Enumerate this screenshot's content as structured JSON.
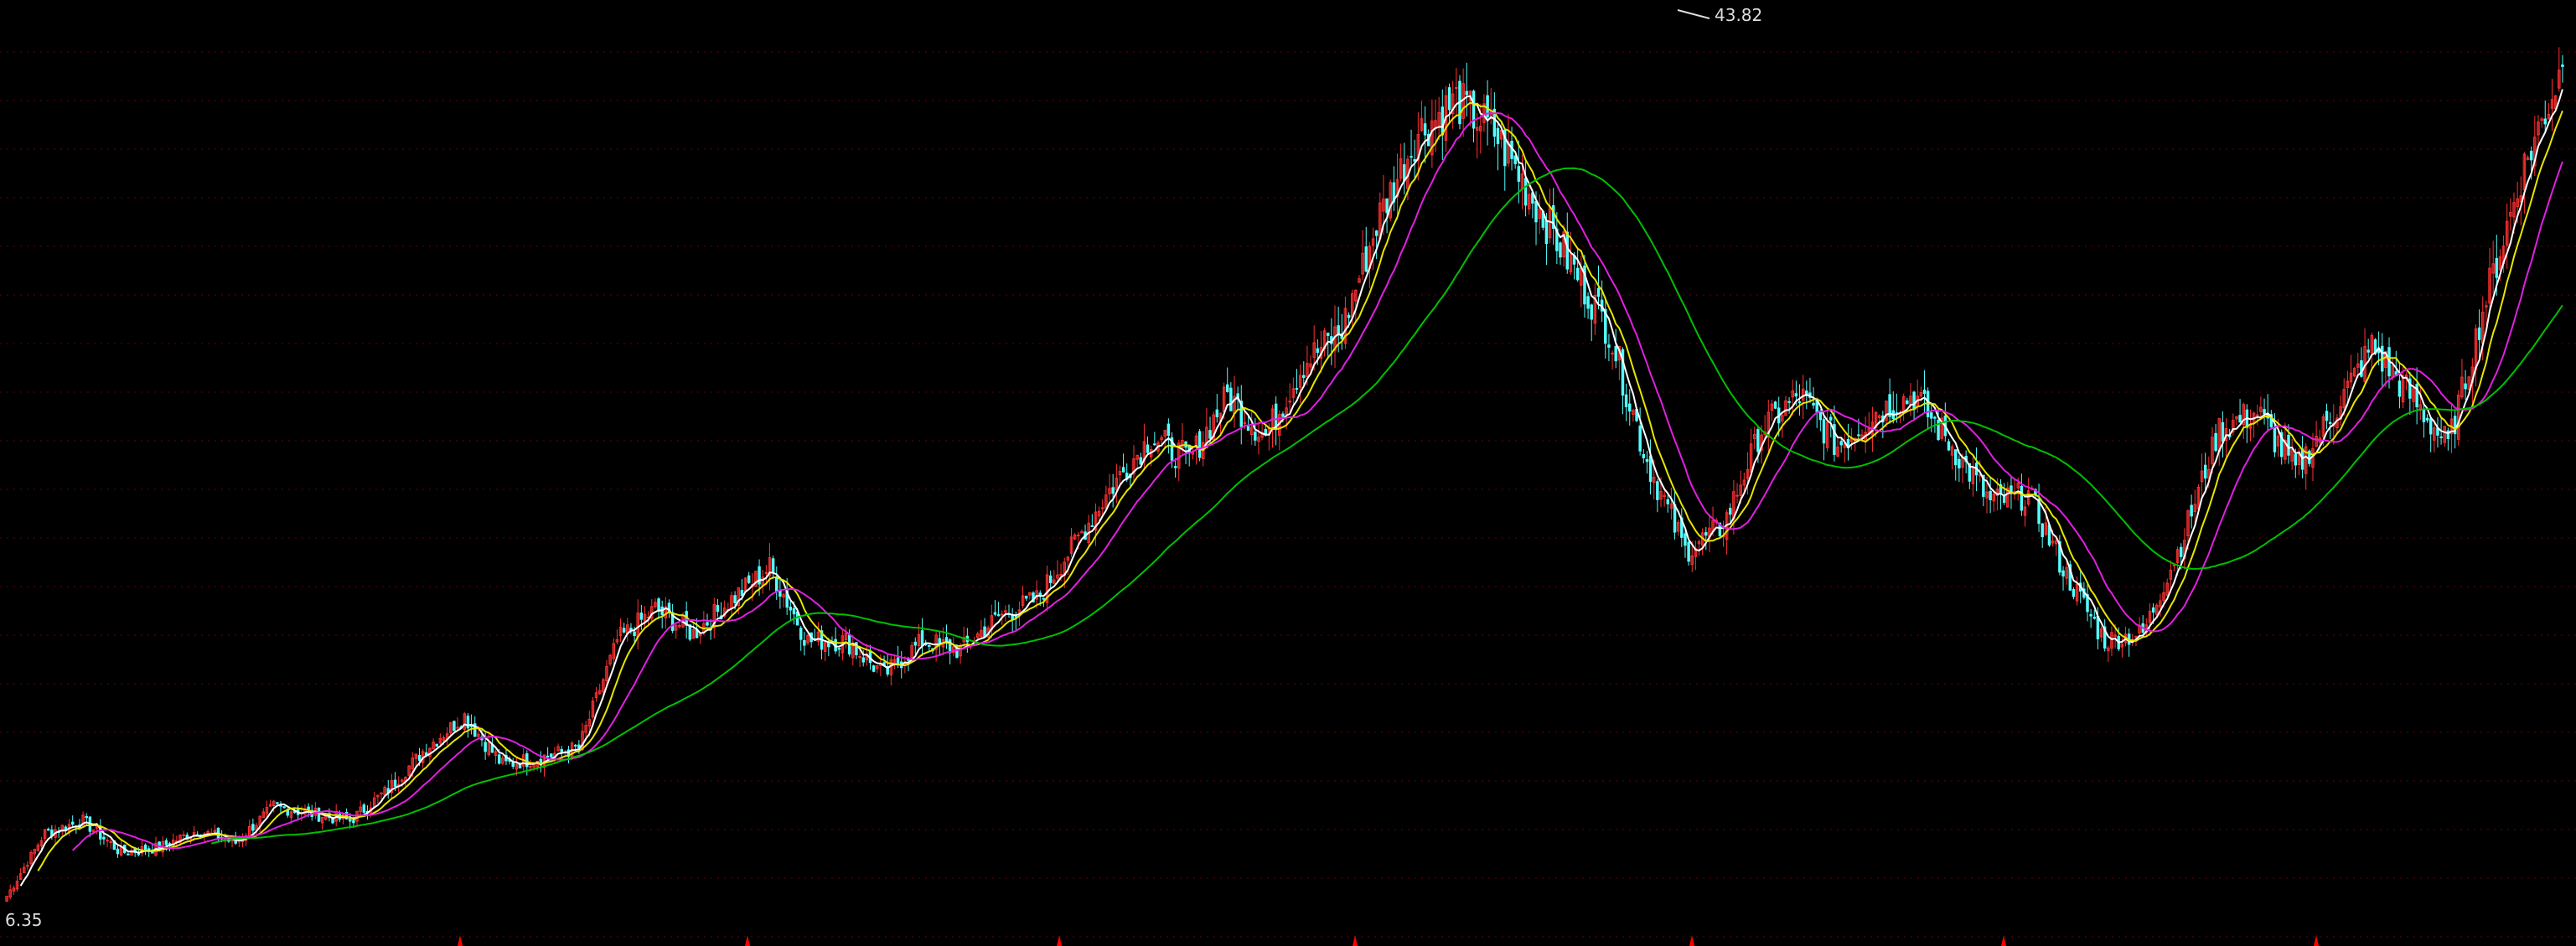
{
  "chart_data": {
    "type": "candlestick",
    "title": "",
    "price_high_label": "43.82",
    "price_low_label": "6.35",
    "ylim": [
      6.35,
      43.82
    ],
    "grid": true,
    "closes": [
      7.4,
      10.0,
      10.5,
      9.2,
      9.4,
      10.1,
      9.6,
      11.1,
      10.8,
      10.5,
      11.8,
      13.5,
      14.8,
      12.8,
      13.1,
      13.5,
      17.9,
      19.2,
      18.2,
      19.6,
      20.9,
      17.9,
      17.9,
      16.5,
      17.9,
      17.5,
      18.9,
      19.6,
      21.9,
      24.3,
      26.3,
      25.3,
      28.0,
      26.3,
      29.3,
      30.7,
      35.4,
      38.8,
      40.1,
      38.8,
      36.1,
      33.4,
      30.7,
      25.3,
      21.6,
      22.6,
      26.6,
      28.0,
      25.9,
      27.3,
      28.0,
      25.9,
      23.6,
      23.9,
      20.6,
      17.9,
      18.2,
      21.9,
      26.6,
      27.3,
      24.9,
      27.3,
      30.0,
      28.0,
      25.9,
      32.0,
      37.4,
      41.5
    ],
    "moving_averages": [
      {
        "period": 5,
        "color": "#ffffff"
      },
      {
        "period": 10,
        "color": "#e6e600"
      },
      {
        "period": 20,
        "color": "#e020e0"
      },
      {
        "period": 60,
        "color": "#00c000"
      }
    ],
    "colors": {
      "up": "#ff3232",
      "down": "#54ffff",
      "grid": "#6a0000",
      "marker": "#ff0000"
    },
    "period_markers": 7
  }
}
